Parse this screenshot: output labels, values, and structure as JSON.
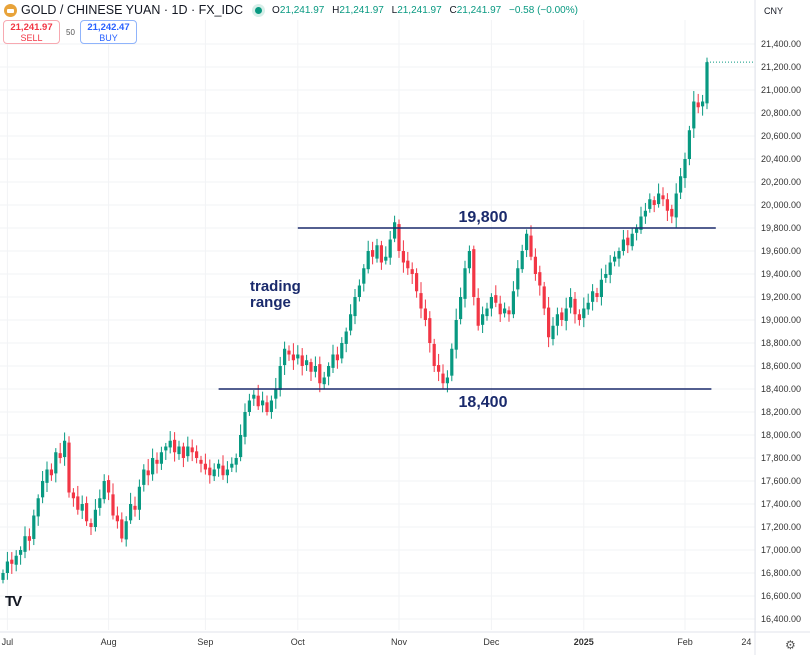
{
  "header": {
    "title": "GOLD / CHINESE YUAN · 1D · FX_IDC",
    "o_label": "O",
    "o": "21,241.97",
    "h_label": "H",
    "h": "21,241.97",
    "l_label": "L",
    "l": "21,241.97",
    "c_label": "C",
    "c": "21,241.97",
    "change": "−0.58 (−0.00%)"
  },
  "trade": {
    "sell_price": "21,241.97",
    "sell_label": "SELL",
    "spread": "50",
    "buy_price": "21,242.47",
    "buy_label": "BUY"
  },
  "currency": "CNY",
  "colors": {
    "up": "#089981",
    "down": "#f23645",
    "annotation": "#1a2a6c"
  },
  "chart_data": {
    "type": "candlestick",
    "title": "GOLD / CHINESE YUAN · 1D · FX_IDC",
    "ylim": [
      16300,
      21600
    ],
    "y_ticks": [
      16400,
      16600,
      16800,
      17000,
      17200,
      17400,
      17600,
      17800,
      18000,
      18200,
      18400,
      18600,
      18800,
      19000,
      19200,
      19400,
      19600,
      19800,
      20000,
      20200,
      20400,
      20600,
      20800,
      21000,
      21200,
      21400
    ],
    "y_tick_labels": [
      "16,400.00",
      "16,600.00",
      "16,800.00",
      "17,000.00",
      "17,200.00",
      "17,400.00",
      "17,600.00",
      "17,800.00",
      "18,000.00",
      "18,200.00",
      "18,400.00",
      "18,600.00",
      "18,800.00",
      "19,000.00",
      "19,200.00",
      "19,400.00",
      "19,600.00",
      "19,800.00",
      "20,000.00",
      "20,200.00",
      "20,400.00",
      "20,600.00",
      "20,800.00",
      "21,000.00",
      "21,200.00",
      "21,400.00"
    ],
    "x_ticks": [
      {
        "label": "Jul",
        "day": 1
      },
      {
        "label": "Aug",
        "day": 24
      },
      {
        "label": "Sep",
        "day": 46
      },
      {
        "label": "Oct",
        "day": 67
      },
      {
        "label": "Nov",
        "day": 90
      },
      {
        "label": "Dec",
        "day": 111
      },
      {
        "label": "2025",
        "day": 132
      },
      {
        "label": "Feb",
        "day": 155
      },
      {
        "label": "24",
        "day": 171
      }
    ],
    "closes": [
      16800,
      16900,
      16880,
      16950,
      17000,
      17120,
      17080,
      17300,
      17450,
      17600,
      17700,
      17650,
      17850,
      17800,
      17950,
      17500,
      17450,
      17350,
      17400,
      17250,
      17200,
      17350,
      17450,
      17600,
      17500,
      17300,
      17250,
      17100,
      17250,
      17400,
      17350,
      17550,
      17700,
      17650,
      17800,
      17750,
      17850,
      17900,
      17950,
      17850,
      17900,
      17800,
      17900,
      17850,
      17800,
      17750,
      17700,
      17650,
      17700,
      17750,
      17650,
      17700,
      17750,
      17800,
      18000,
      18200,
      18300,
      18350,
      18250,
      18300,
      18200,
      18300,
      18400,
      18600,
      18750,
      18700,
      18650,
      18700,
      18600,
      18650,
      18550,
      18600,
      18450,
      18500,
      18600,
      18700,
      18650,
      18800,
      18900,
      19050,
      19200,
      19300,
      19450,
      19600,
      19550,
      19650,
      19500,
      19550,
      19700,
      19850,
      19600,
      19500,
      19450,
      19400,
      19250,
      19100,
      19000,
      18800,
      18600,
      18550,
      18450,
      18500,
      18750,
      19000,
      19200,
      19450,
      19600,
      19200,
      18950,
      19050,
      19100,
      19200,
      19150,
      19050,
      19100,
      19050,
      19250,
      19450,
      19600,
      19750,
      19550,
      19400,
      19300,
      19100,
      18850,
      18950,
      19050,
      19000,
      19100,
      19200,
      19050,
      19000,
      19100,
      19150,
      19250,
      19200,
      19350,
      19400,
      19500,
      19550,
      19600,
      19700,
      19650,
      19750,
      19800,
      19900,
      19950,
      20050,
      20000,
      20100,
      20050,
      19950,
      19900,
      20100,
      20250,
      20400,
      20650,
      20900,
      20850,
      20900,
      21242
    ],
    "annotations": [
      {
        "type": "hline",
        "value": 19800,
        "label": "19,800",
        "from_day": 67,
        "to_day": 162
      },
      {
        "type": "hline",
        "value": 18400,
        "label": "18,400",
        "from_day": 49,
        "to_day": 161
      },
      {
        "type": "text",
        "lines": [
          "trading",
          "range"
        ]
      }
    ]
  }
}
